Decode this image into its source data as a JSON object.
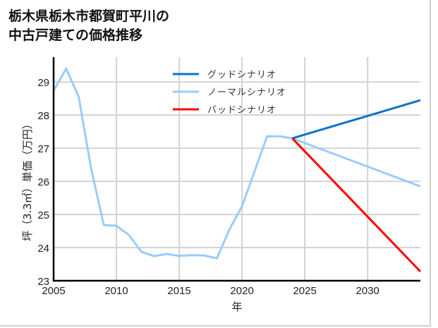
{
  "title_line1": "栃木県栃木市都賀町平川の",
  "title_line2": "中古戸建ての価格推移",
  "chart_data": {
    "type": "line",
    "title": "栃木県栃木市都賀町平川の中古戸建ての価格推移",
    "xlabel": "年",
    "ylabel": "坪（3.3㎡）単価（万円）",
    "xlim": [
      2005,
      2034.2
    ],
    "ylim": [
      23,
      29.75
    ],
    "xticks": [
      2005,
      2010,
      2015,
      2020,
      2025,
      2030
    ],
    "yticks": [
      23,
      24,
      25,
      26,
      27,
      28,
      29
    ],
    "grid": true,
    "legend_position": "upper center",
    "series": [
      {
        "name": "グッドシナリオ",
        "color": "#0a72c8",
        "x": [
          2024,
          2034.2
        ],
        "values": [
          27.3,
          28.45
        ]
      },
      {
        "name": "ノーマルシナリオ",
        "color": "#99ccff",
        "x": [
          2005,
          2006,
          2007,
          2008,
          2009,
          2010,
          2011,
          2012,
          2013,
          2014,
          2015,
          2016,
          2017,
          2018,
          2019,
          2020,
          2021,
          2022,
          2023,
          2024,
          2034.2
        ],
        "values": [
          28.74,
          29.4,
          28.55,
          26.36,
          24.68,
          24.66,
          24.38,
          23.87,
          23.74,
          23.81,
          23.75,
          23.77,
          23.76,
          23.68,
          24.55,
          25.25,
          26.3,
          27.36,
          27.36,
          27.3,
          25.85
        ]
      },
      {
        "name": "バッドシナリオ",
        "color": "#ff0000",
        "x": [
          2024,
          2034.2
        ],
        "values": [
          27.3,
          23.28
        ]
      }
    ]
  }
}
